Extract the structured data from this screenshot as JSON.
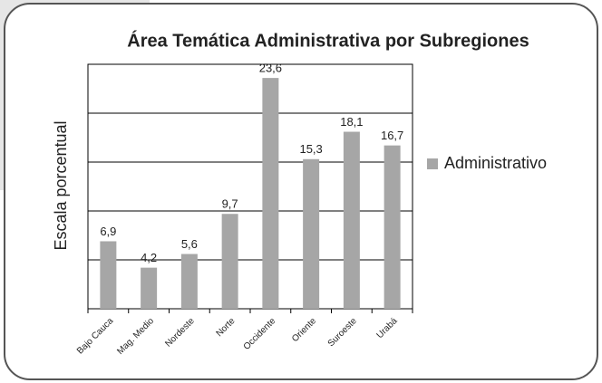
{
  "chart_data": {
    "type": "bar",
    "title": "Área Temática Administrativa por Subregiones",
    "y_label": "Escala porcentual",
    "categories": [
      "Bajo Cauca",
      "Mag. Medio",
      "Nordeste",
      "Norte",
      "Occidente",
      "Oriente",
      "Suroeste",
      "Urabá"
    ],
    "series": [
      {
        "name": "Administrativo",
        "color": "#a6a6a6",
        "values": [
          6.9,
          4.2,
          5.6,
          9.7,
          23.6,
          15.3,
          18.1,
          16.7
        ],
        "value_labels": [
          "6,9",
          "4,2",
          "5,6",
          "9,7",
          "23,6",
          "15,3",
          "18,1",
          "16,7"
        ]
      }
    ],
    "ylim": [
      0,
      25
    ],
    "yticks": [
      0,
      5,
      10,
      15,
      20,
      25
    ],
    "grid": true,
    "legend": "right"
  }
}
